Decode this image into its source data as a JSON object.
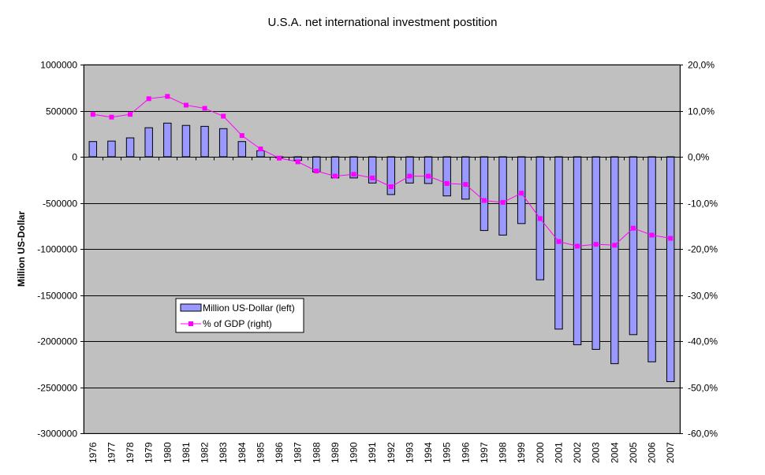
{
  "chart_data": {
    "type": "bar+line",
    "title": "U.S.A. net international investment postition",
    "ylabel": "Million US-Dollar",
    "y2label": "",
    "xlabel": "",
    "categories": [
      "1976",
      "1977",
      "1978",
      "1979",
      "1980",
      "1981",
      "1982",
      "1983",
      "1984",
      "1985",
      "1986",
      "1987",
      "1988",
      "1989",
      "1990",
      "1991",
      "1992",
      "1993",
      "1994",
      "1995",
      "1996",
      "1997",
      "1998",
      "1999",
      "2000",
      "2001",
      "2002",
      "2003",
      "2004",
      "2005",
      "2006",
      "2007"
    ],
    "series": [
      {
        "name": "Million US-Dollar (left)",
        "kind": "bar",
        "axis": "left",
        "color": "#9999FF",
        "values": [
          165000,
          170000,
          205000,
          315000,
          365000,
          340000,
          330000,
          305000,
          165000,
          65000,
          -10000,
          -40000,
          -165000,
          -230000,
          -230000,
          -285000,
          -410000,
          -285000,
          -290000,
          -425000,
          -460000,
          -800000,
          -850000,
          -725000,
          -1335000,
          -1870000,
          -2040000,
          -2090000,
          -2245000,
          -1930000,
          -2225000,
          -2440000
        ]
      },
      {
        "name": "% of GDP (right)",
        "kind": "line",
        "axis": "right",
        "color": "#FF00FF",
        "values": [
          9.2,
          8.6,
          9.2,
          12.6,
          13.1,
          11.2,
          10.5,
          8.8,
          4.6,
          1.7,
          -0.3,
          -1.1,
          -3.1,
          -4.2,
          -3.8,
          -4.6,
          -6.5,
          -4.2,
          -4.2,
          -5.8,
          -6.0,
          -9.5,
          -9.9,
          -7.9,
          -13.4,
          -18.4,
          -19.4,
          -19.0,
          -19.2,
          -15.5,
          -17.0,
          -17.7
        ]
      }
    ],
    "ylim": [
      -3000000,
      1000000
    ],
    "yticks": [
      1000000,
      500000,
      0,
      -500000,
      -1000000,
      -1500000,
      -2000000,
      -2500000,
      -3000000
    ],
    "y2lim": [
      -60,
      20
    ],
    "y2ticks": [
      20,
      10,
      0,
      -10,
      -20,
      -30,
      -40,
      -50,
      -60
    ],
    "y2tick_labels": [
      "20,0%",
      "10,0%",
      "0,0%",
      "-10,0%",
      "-20,0%",
      "-30,0%",
      "-40,0%",
      "-50,0%",
      "-60,0%"
    ],
    "grid": true,
    "plot_background": "#C0C0C0",
    "legend": {
      "position": "bottom-left inside plot",
      "entries": [
        "Million US-Dollar (left)",
        "% of GDP (right)"
      ]
    }
  }
}
